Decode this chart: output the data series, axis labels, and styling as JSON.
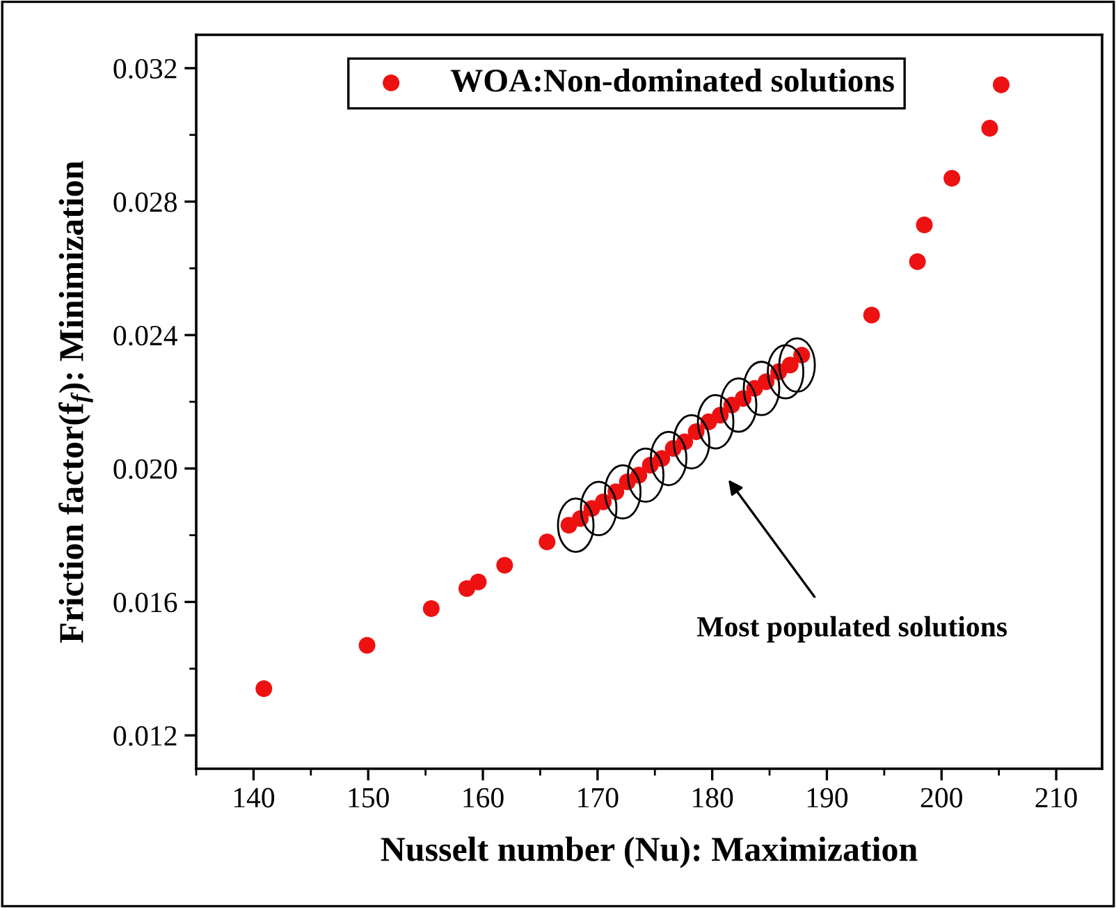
{
  "chart_data": {
    "type": "scatter",
    "xlabel": "Nusselt number (Nu): Maximization",
    "ylabel": "Friction factor(f$_{f}$): Minimization",
    "series": [
      {
        "name": "WOA:Non-dominated solutions",
        "color": "#ee1111",
        "x": [
          140.9,
          149.9,
          155.5,
          158.6,
          159.6,
          161.9,
          165.6,
          167.5,
          168.5,
          169.5,
          170.5,
          171.6,
          172.6,
          173.6,
          174.6,
          175.6,
          176.6,
          177.6,
          178.6,
          179.7,
          180.7,
          181.7,
          182.7,
          183.7,
          184.7,
          185.8,
          186.8,
          187.8,
          193.9,
          197.9,
          198.5,
          200.9,
          204.2,
          205.2
        ],
        "values": [
          0.0134,
          0.0147,
          0.0158,
          0.0164,
          0.0166,
          0.0171,
          0.0178,
          0.0183,
          0.0185,
          0.0188,
          0.019,
          0.0193,
          0.0196,
          0.0198,
          0.0201,
          0.0203,
          0.0206,
          0.0208,
          0.0211,
          0.0214,
          0.0216,
          0.0219,
          0.0221,
          0.0224,
          0.0226,
          0.0229,
          0.0231,
          0.0234,
          0.0246,
          0.0262,
          0.0273,
          0.0287,
          0.0302,
          0.0315
        ]
      }
    ],
    "xlim": [
      135,
      214
    ],
    "xticks": [
      140,
      150,
      160,
      170,
      180,
      190,
      200,
      210
    ],
    "ylim": [
      0.011,
      0.033
    ],
    "yticks": [
      {
        "value": 0.012,
        "label": "0.012"
      },
      {
        "value": 0.016,
        "label": "0.016"
      },
      {
        "value": 0.02,
        "label": "0.020"
      },
      {
        "value": 0.024,
        "label": "0.024"
      },
      {
        "value": 0.028,
        "label": "0.028"
      },
      {
        "value": 0.032,
        "label": "0.032"
      }
    ],
    "marker": "circle",
    "legend": "top",
    "grid": false,
    "annotations": [
      "Most populated solutions"
    ]
  }
}
